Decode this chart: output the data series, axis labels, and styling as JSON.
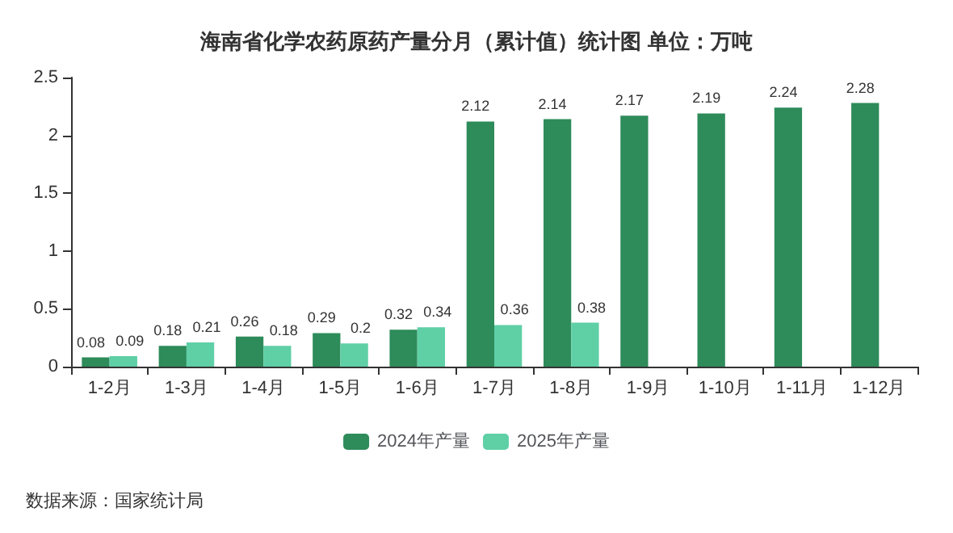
{
  "chart_data": {
    "type": "bar",
    "title": "海南省化学农药原药产量分月（累计值）统计图 单位：万吨",
    "categories": [
      "1-2月",
      "1-3月",
      "1-4月",
      "1-5月",
      "1-6月",
      "1-7月",
      "1-8月",
      "1-9月",
      "1-10月",
      "1-11月",
      "1-12月"
    ],
    "series": [
      {
        "name": "2024年产量",
        "color": "#2e8b5a",
        "values": [
          0.08,
          0.18,
          0.26,
          0.29,
          0.32,
          2.12,
          2.14,
          2.17,
          2.19,
          2.24,
          2.28
        ]
      },
      {
        "name": "2025年产量",
        "color": "#5fcfa6",
        "values": [
          0.09,
          0.21,
          0.18,
          0.2,
          0.34,
          0.36,
          0.38,
          null,
          null,
          null,
          null
        ]
      }
    ],
    "ylim": [
      0,
      2.5
    ],
    "yticks": [
      0,
      0.5,
      1,
      1.5,
      2,
      2.5
    ],
    "grid": false,
    "legend": "bottom",
    "data_labels": true,
    "annotations": [
      "数据来源：国家统计局"
    ]
  }
}
